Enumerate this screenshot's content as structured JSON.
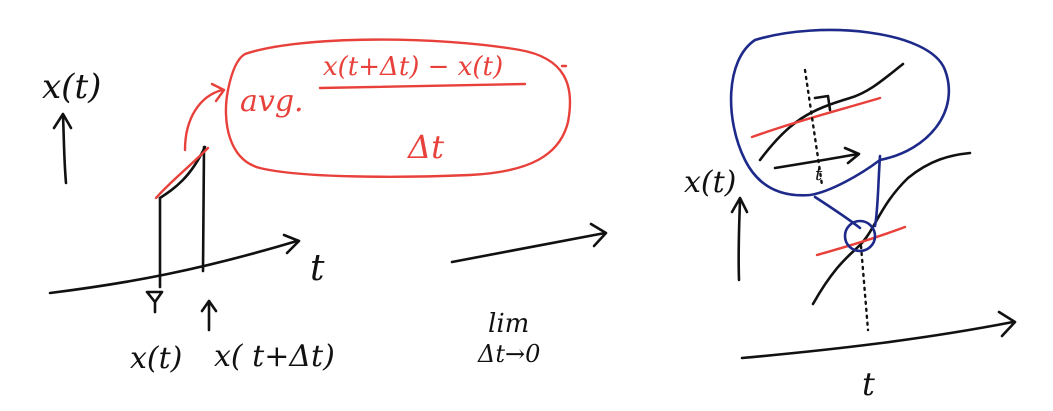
{
  "colors": {
    "ink": "#111111",
    "red": "#e8403a",
    "blue": "#1d2a8a"
  },
  "left_panel": {
    "y_label": "x(t)",
    "x_label": "t",
    "tick_left_label": "x(t)",
    "tick_right_label": "x( t+Δt)"
  },
  "callout": {
    "avg_label": "avg.",
    "numerator": "x(t+Δt) − x(t)",
    "denominator": "Δt"
  },
  "middle": {
    "limit_top": "lim",
    "limit_bottom": "Δt→0"
  },
  "right_panel": {
    "y_label": "x(t)",
    "x_label": "t",
    "zoom_axis_label": "t"
  }
}
